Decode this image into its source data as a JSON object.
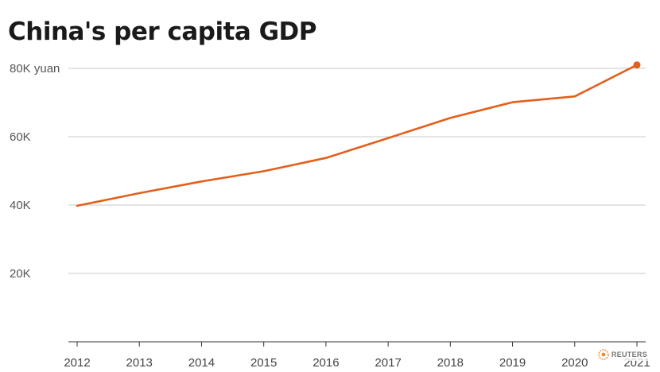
{
  "page": {
    "title": "China's per capita GDP",
    "source": "REUTERS"
  },
  "colors": {
    "series": "#e2601c",
    "grid": "#c8c8c8",
    "axis": "#333333",
    "logo": "#f08a2c"
  },
  "chart_data": {
    "type": "line",
    "title": "China's per capita GDP",
    "xlabel": "",
    "ylabel": "",
    "x": [
      2012,
      2013,
      2014,
      2015,
      2016,
      2017,
      2018,
      2019,
      2020,
      2021
    ],
    "series": [
      {
        "values": [
          39800,
          43500,
          46900,
          49900,
          53800,
          59600,
          65500,
          70100,
          71800,
          81000
        ]
      }
    ],
    "ylim": [
      0,
      80000
    ],
    "yticks": [
      20000,
      40000,
      60000,
      80000
    ],
    "ytick_labels": [
      "20K",
      "40K",
      "60K",
      "80K yuan"
    ],
    "xticks": [
      2012,
      2013,
      2014,
      2015,
      2016,
      2017,
      2018,
      2019,
      2020,
      2021
    ],
    "xtick_labels": [
      "2012",
      "2013",
      "2014",
      "2015",
      "2016",
      "2017",
      "2018",
      "2019",
      "2020",
      "2021"
    ],
    "grid": "horizontal",
    "legend": "none",
    "highlight_last_point": true
  }
}
